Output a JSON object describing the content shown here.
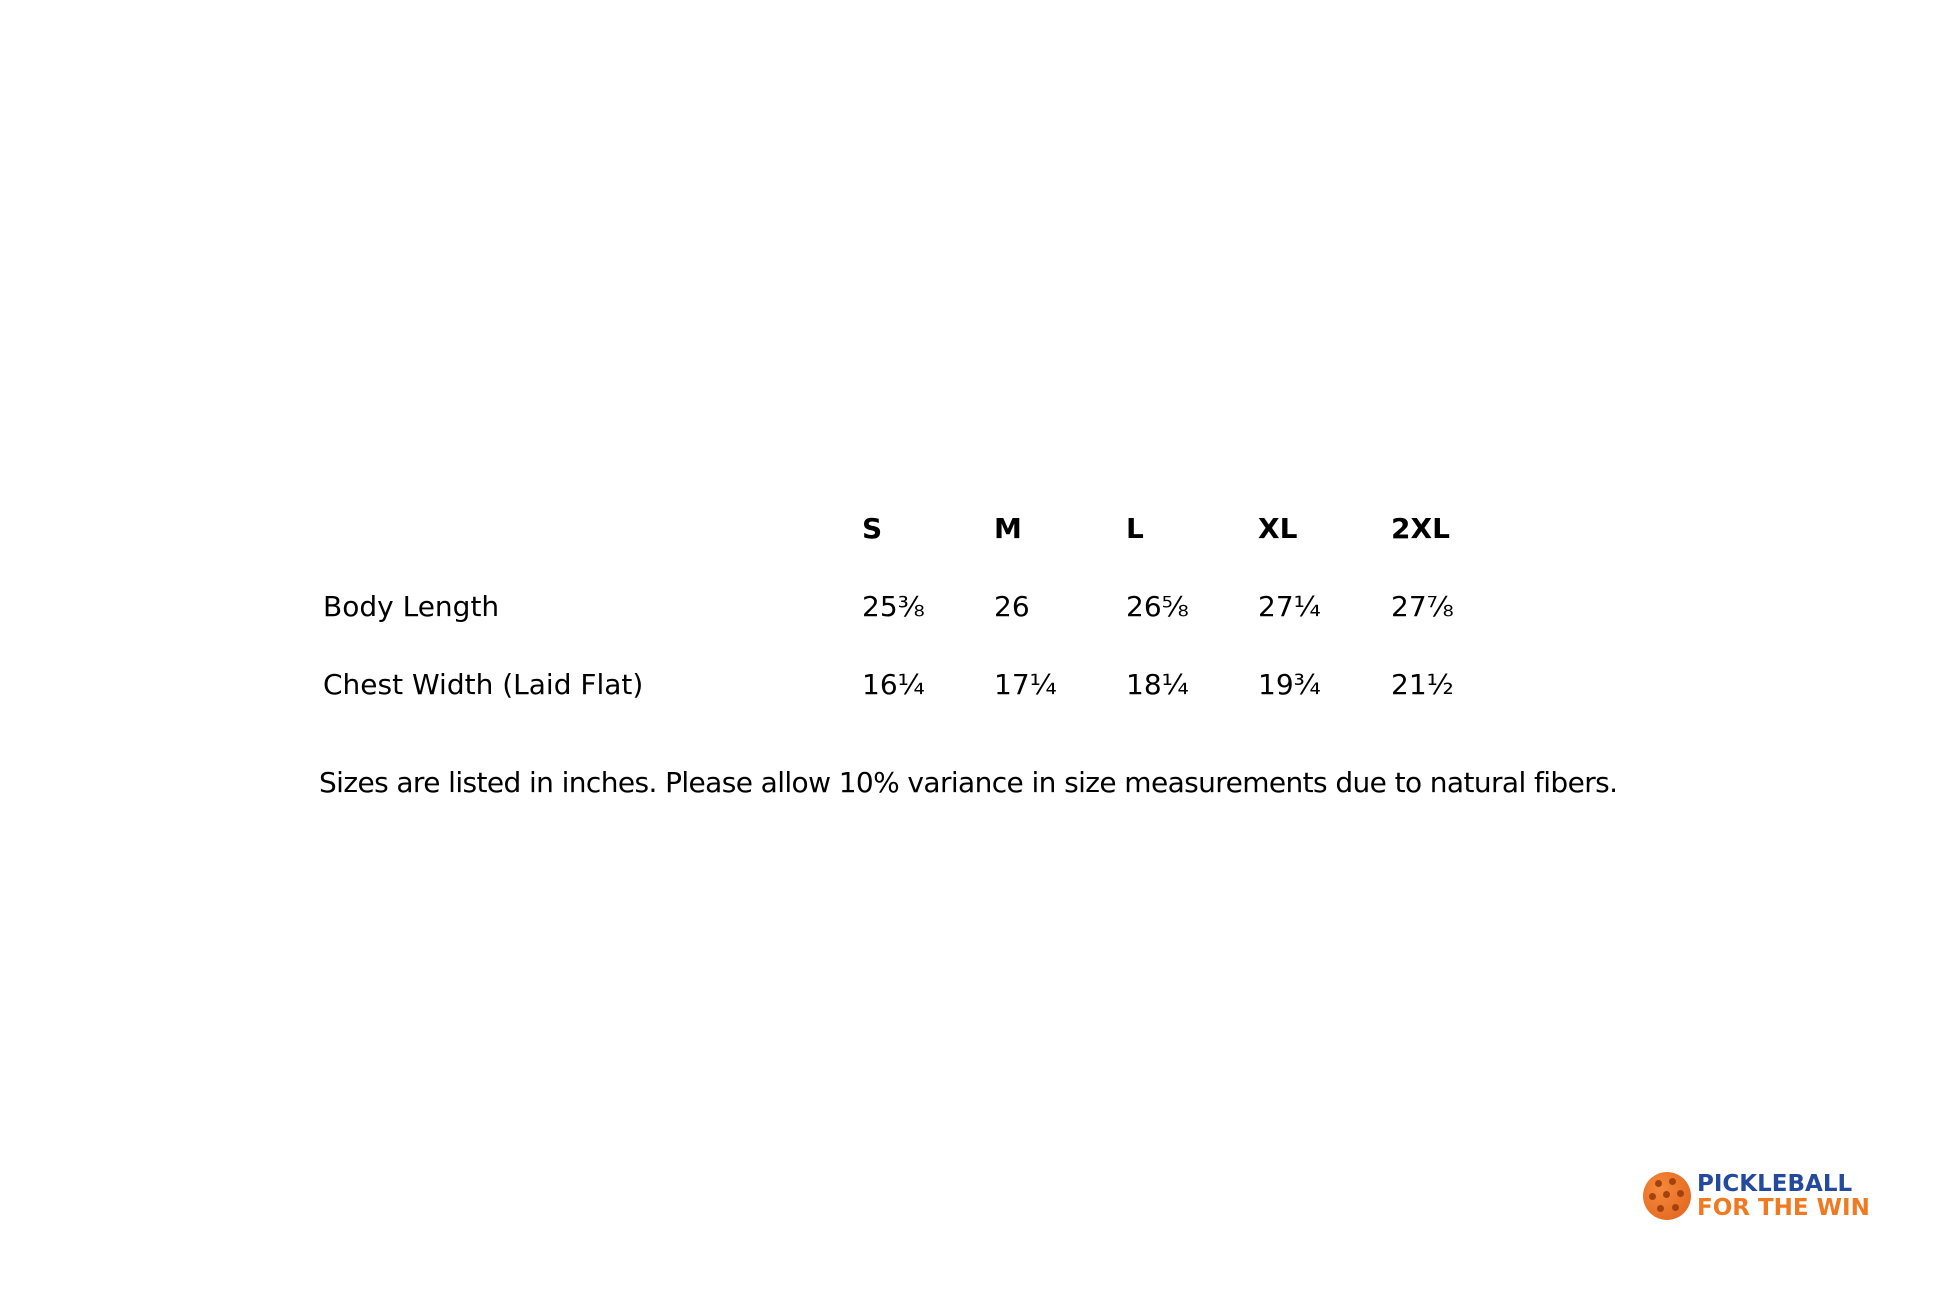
{
  "table": {
    "headers": [
      "S",
      "M",
      "L",
      "XL",
      "2XL"
    ],
    "rows": [
      {
        "label": "Body Length",
        "values": [
          "25⅜",
          "26",
          "26⅝",
          "27¼",
          "27⅞"
        ]
      },
      {
        "label": "Chest Width (Laid Flat)",
        "values": [
          "16¼",
          "17¼",
          "18¼",
          "19¾",
          "21½"
        ]
      }
    ]
  },
  "note": "Sizes are listed in inches. Please allow 10% variance in size measurements due to natural fibers.",
  "logo": {
    "line1": "PICKLEBALL",
    "line2": "FOR THE WIN",
    "colors": {
      "blue": "#234a9c",
      "orange": "#f07a22"
    }
  }
}
